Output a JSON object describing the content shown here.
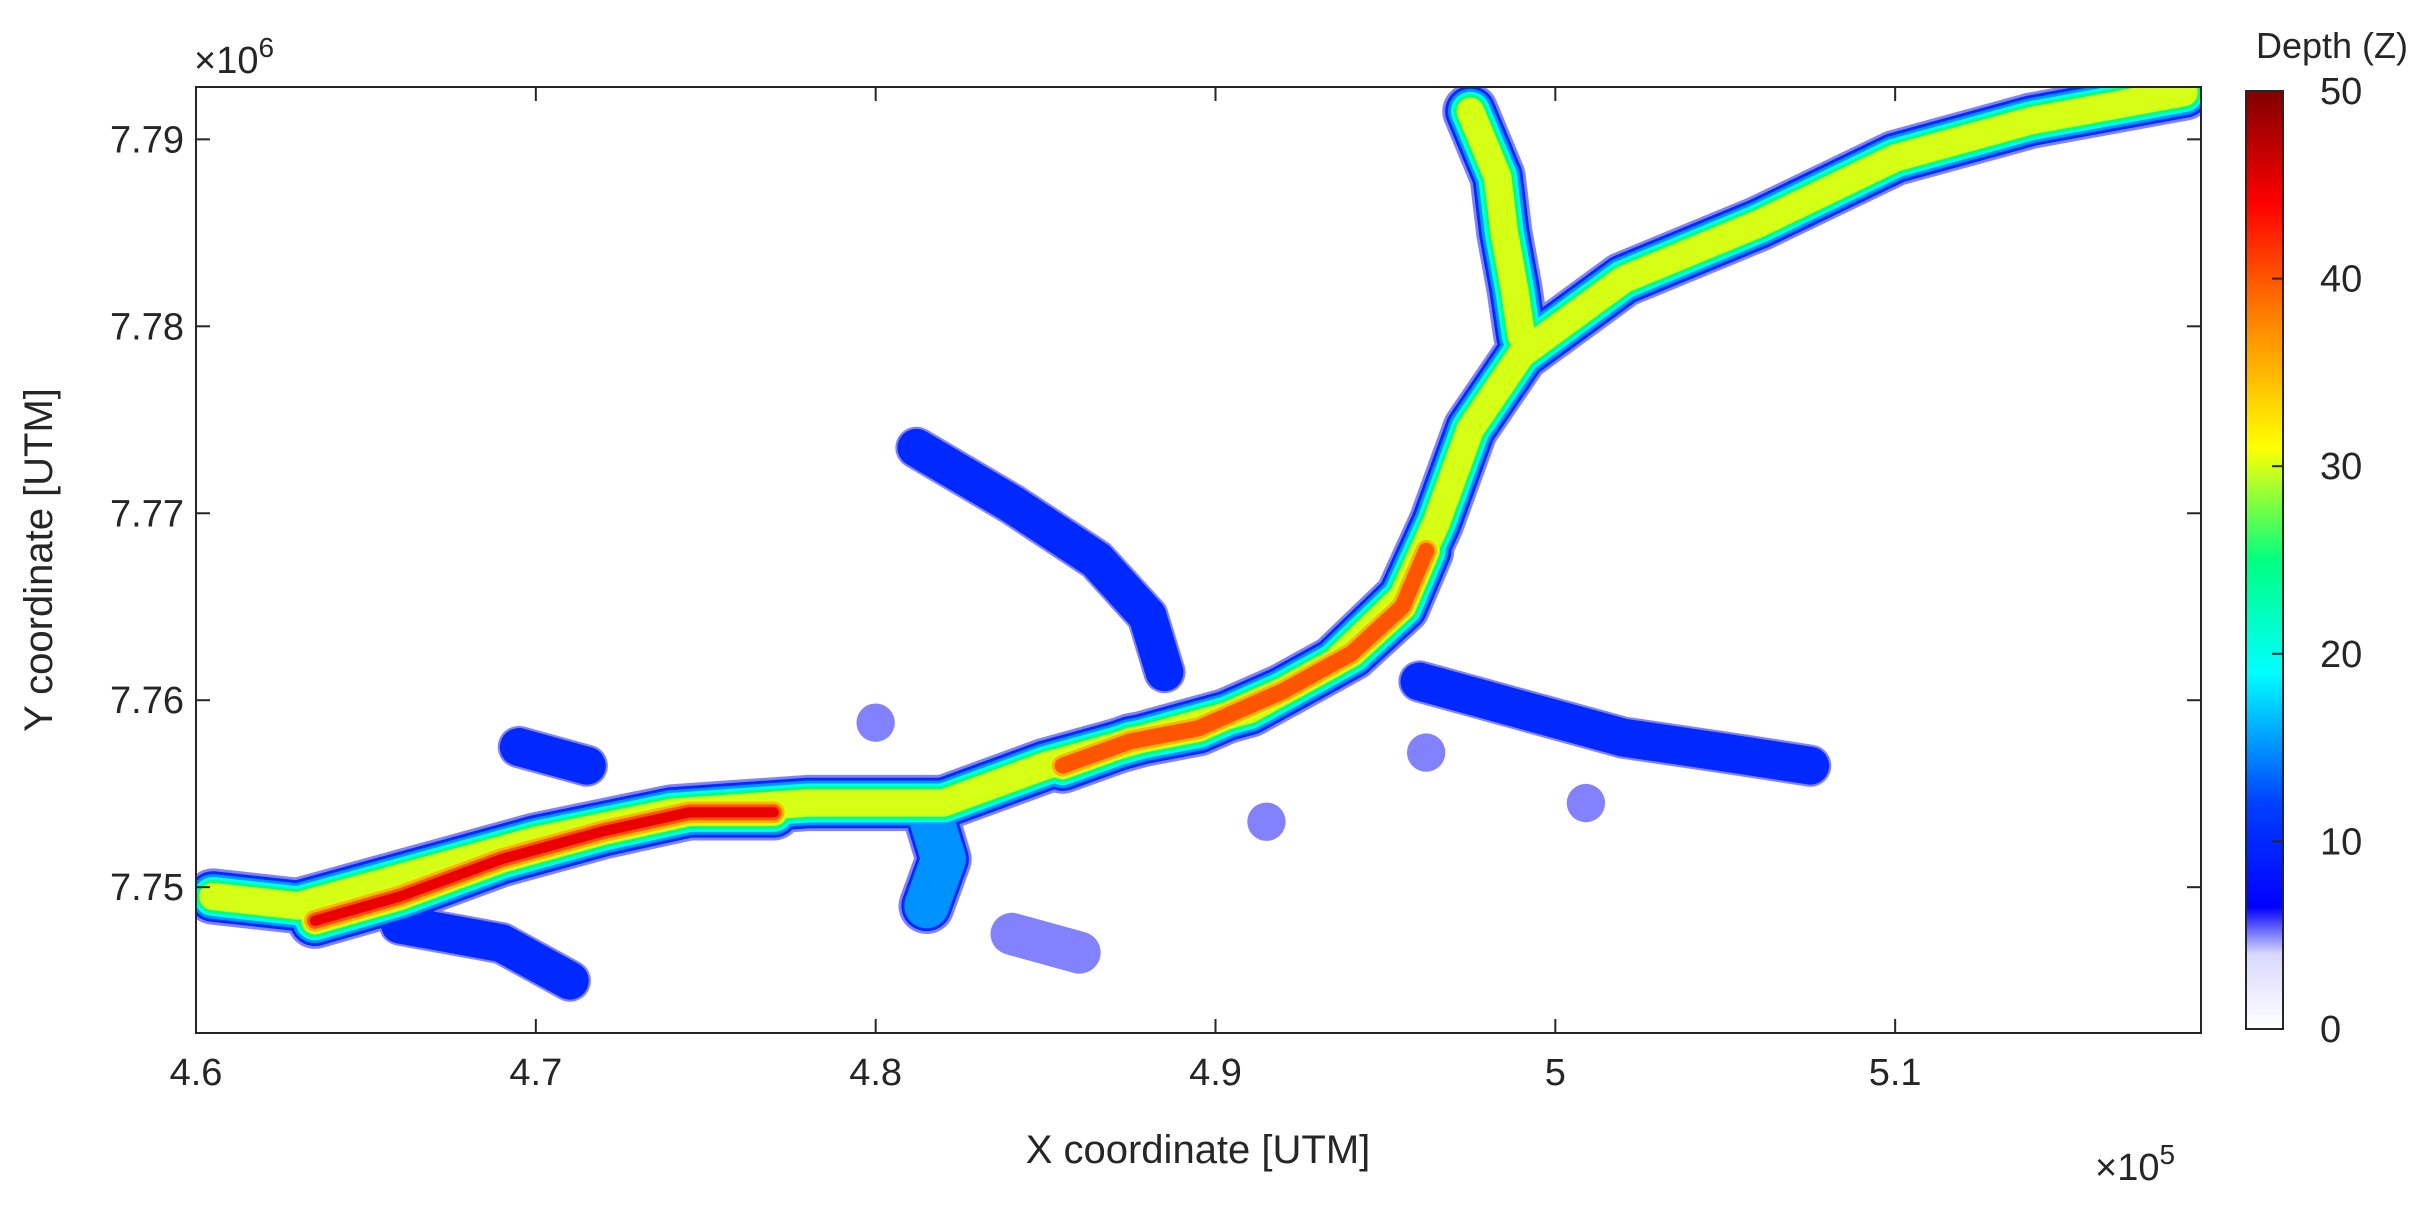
{
  "chart_data": {
    "type": "contour-map",
    "xlabel": "X coordinate [UTM]",
    "ylabel": "Y coordinate [UTM]",
    "x_exponent_label": "×10",
    "x_exponent_power": "5",
    "y_exponent_label": "×10",
    "y_exponent_power": "6",
    "xlim": [
      4.6,
      5.19
    ],
    "ylim": [
      7.7422,
      7.7928
    ],
    "x_ticks": [
      {
        "v": 4.6,
        "label": "4.6"
      },
      {
        "v": 4.7,
        "label": "4.7"
      },
      {
        "v": 4.8,
        "label": "4.8"
      },
      {
        "v": 4.9,
        "label": "4.9"
      },
      {
        "v": 5.0,
        "label": "5"
      },
      {
        "v": 5.1,
        "label": "5.1"
      }
    ],
    "y_ticks": [
      {
        "v": 7.75,
        "label": "7.75"
      },
      {
        "v": 7.76,
        "label": "7.76"
      },
      {
        "v": 7.77,
        "label": "7.77"
      },
      {
        "v": 7.78,
        "label": "7.78"
      },
      {
        "v": 7.79,
        "label": "7.79"
      }
    ],
    "colorbar": {
      "title": "Depth (Z)",
      "min": 0,
      "max": 50,
      "ticks": [
        "0",
        "10",
        "20",
        "30",
        "40",
        "50"
      ],
      "colormap": "jet-with-white-low"
    },
    "grid": false,
    "depth_features": [
      {
        "name": "main channel",
        "path": [
          [
            4.605,
            7.7495
          ],
          [
            4.63,
            7.749
          ],
          [
            4.66,
            7.7505
          ],
          [
            4.7,
            7.7525
          ],
          [
            4.74,
            7.754
          ],
          [
            4.78,
            7.7545
          ],
          [
            4.82,
            7.7545
          ],
          [
            4.85,
            7.7565
          ],
          [
            4.88,
            7.758
          ],
          [
            4.91,
            7.7595
          ],
          [
            4.935,
            7.762
          ],
          [
            4.955,
            7.7655
          ],
          [
            4.965,
            7.7695
          ],
          [
            4.975,
            7.7745
          ],
          [
            4.99,
            7.7785
          ],
          [
            5.02,
            7.7825
          ],
          [
            5.06,
            7.7855
          ],
          [
            5.1,
            7.789
          ],
          [
            5.14,
            7.791
          ],
          [
            5.185,
            7.7925
          ]
        ],
        "max_depth": 30
      },
      {
        "name": "deep core west",
        "path": [
          [
            4.635,
            7.7482
          ],
          [
            4.66,
            7.7495
          ],
          [
            4.69,
            7.7515
          ],
          [
            4.72,
            7.753
          ],
          [
            4.745,
            7.754
          ],
          [
            4.77,
            7.754
          ]
        ],
        "max_depth": 47
      },
      {
        "name": "deep core central",
        "path": [
          [
            4.855,
            7.7565
          ],
          [
            4.875,
            7.7578
          ],
          [
            4.895,
            7.7585
          ],
          [
            4.92,
            7.7605
          ],
          [
            4.94,
            7.7625
          ],
          [
            4.955,
            7.765
          ],
          [
            4.962,
            7.768
          ]
        ],
        "max_depth": 43
      },
      {
        "name": "north branch",
        "path": [
          [
            4.99,
            7.7795
          ],
          [
            4.988,
            7.782
          ],
          [
            4.985,
            7.785
          ],
          [
            4.983,
            7.788
          ],
          [
            4.975,
            7.7915
          ]
        ],
        "max_depth": 32
      },
      {
        "name": "northwest arm",
        "path": [
          [
            4.812,
            7.7735
          ],
          [
            4.84,
            7.7705
          ],
          [
            4.865,
            7.7675
          ],
          [
            4.88,
            7.7645
          ],
          [
            4.885,
            7.7615
          ]
        ],
        "max_depth": 12
      },
      {
        "name": "southeast arm",
        "path": [
          [
            4.96,
            7.761
          ],
          [
            4.99,
            7.7595
          ],
          [
            5.02,
            7.758
          ],
          [
            5.05,
            7.7572
          ],
          [
            5.075,
            7.7565
          ]
        ],
        "max_depth": 14
      },
      {
        "name": "south lobe",
        "path": [
          [
            4.66,
            7.748
          ],
          [
            4.69,
            7.747
          ],
          [
            4.71,
            7.745
          ]
        ],
        "max_depth": 14
      },
      {
        "name": "northwest bay",
        "path": [
          [
            4.695,
            7.7575
          ],
          [
            4.715,
            7.7565
          ]
        ],
        "max_depth": 12
      },
      {
        "name": "channel neck",
        "path": [
          [
            4.815,
            7.7545
          ],
          [
            4.82,
            7.7515
          ],
          [
            4.815,
            7.749
          ]
        ],
        "max_depth": 18
      },
      {
        "name": "southern spur",
        "path": [
          [
            4.84,
            7.7475
          ],
          [
            4.86,
            7.7465
          ]
        ],
        "max_depth": 9
      },
      {
        "name": "pool near 4.81",
        "path": [
          [
            4.8,
            7.7588
          ]
        ],
        "max_depth": 8
      },
      {
        "name": "pool near 4.92",
        "path": [
          [
            4.915,
            7.7535
          ]
        ],
        "max_depth": 8
      },
      {
        "name": "pool near 5.01",
        "path": [
          [
            5.009,
            7.7545
          ]
        ],
        "max_depth": 8
      },
      {
        "name": "pool near 4.96",
        "path": [
          [
            4.962,
            7.7572
          ]
        ],
        "max_depth": 9
      }
    ]
  }
}
